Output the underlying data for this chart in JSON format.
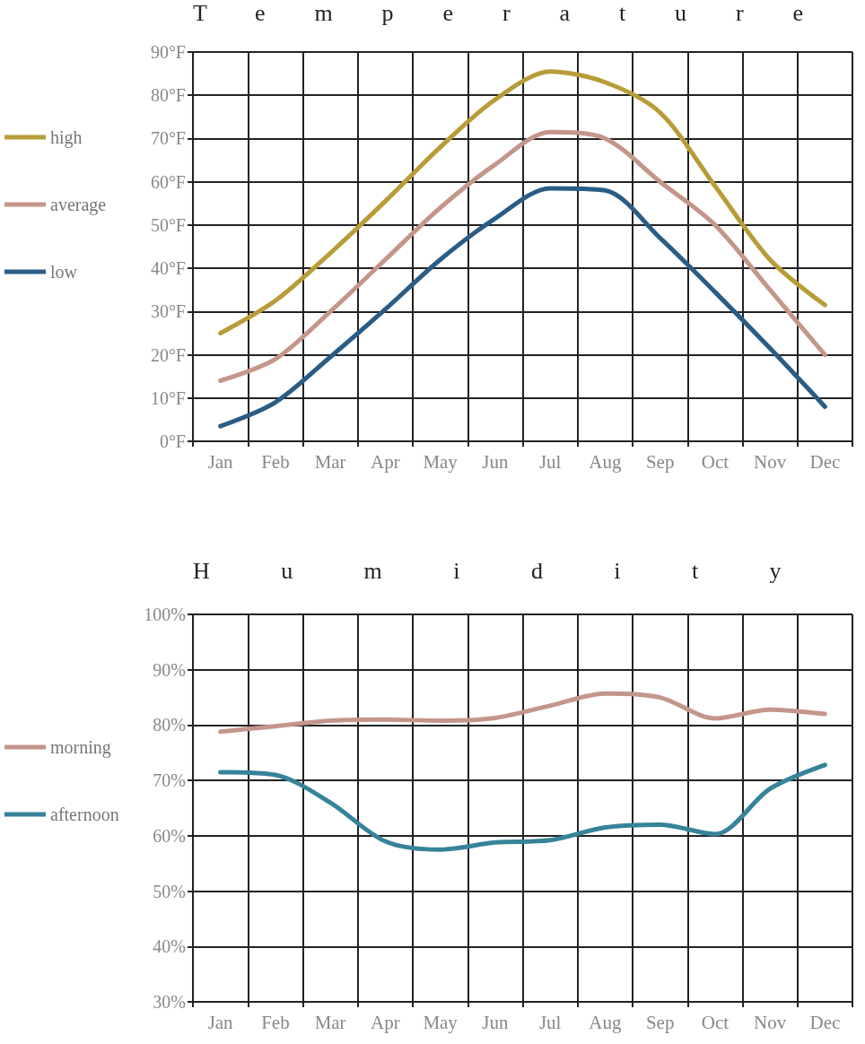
{
  "chart_data": [
    {
      "type": "line",
      "title": "Temperature",
      "categories": [
        "Jan",
        "Feb",
        "Mar",
        "Apr",
        "May",
        "Jun",
        "Jul",
        "Aug",
        "Sep",
        "Oct",
        "Nov",
        "Dec"
      ],
      "ylim": [
        0,
        90
      ],
      "yticks": [
        {
          "value": 0,
          "label": "0°F"
        },
        {
          "value": 10,
          "label": "10°F"
        },
        {
          "value": 20,
          "label": "20°F"
        },
        {
          "value": 30,
          "label": "30°F"
        },
        {
          "value": 40,
          "label": "40°F"
        },
        {
          "value": 50,
          "label": "50°F"
        },
        {
          "value": 60,
          "label": "60°F"
        },
        {
          "value": 70,
          "label": "70°F"
        },
        {
          "value": 80,
          "label": "80°F"
        },
        {
          "value": 90,
          "label": "90°F"
        }
      ],
      "grid": true,
      "legend": "left",
      "marker": "none",
      "line_style": "solid",
      "series": [
        {
          "name": "high",
          "color": "#b89c38",
          "values": [
            25,
            32.5,
            43.5,
            55.5,
            68,
            79,
            85.5,
            83,
            76,
            59,
            42,
            31.5
          ]
        },
        {
          "name": "average",
          "color": "#c4968a",
          "values": [
            14,
            19,
            30,
            42,
            54,
            64,
            71.5,
            70,
            60,
            50,
            35,
            20
          ]
        },
        {
          "name": "low",
          "color": "#2a5d85",
          "values": [
            3.5,
            9,
            19.5,
            30.5,
            42,
            51.5,
            58.5,
            58,
            47,
            34.5,
            21.5,
            8
          ]
        }
      ]
    },
    {
      "type": "line",
      "title": "Humidity",
      "categories": [
        "Jan",
        "Feb",
        "Mar",
        "Apr",
        "May",
        "Jun",
        "Jul",
        "Aug",
        "Sep",
        "Oct",
        "Nov",
        "Dec"
      ],
      "ylim": [
        30,
        100
      ],
      "yticks": [
        {
          "value": 30,
          "label": "30%"
        },
        {
          "value": 40,
          "label": "40%"
        },
        {
          "value": 50,
          "label": "50%"
        },
        {
          "value": 60,
          "label": "60%"
        },
        {
          "value": 70,
          "label": "70%"
        },
        {
          "value": 80,
          "label": "80%"
        },
        {
          "value": 90,
          "label": "90%"
        },
        {
          "value": 100,
          "label": "100%"
        }
      ],
      "grid": true,
      "legend": "left",
      "marker": "none",
      "line_style": "solid",
      "series": [
        {
          "name": "morning",
          "color": "#c4968a",
          "values": [
            78.8,
            79.8,
            80.8,
            81,
            80.8,
            81.3,
            83.5,
            85.7,
            85,
            81.2,
            82.8,
            82
          ]
        },
        {
          "name": "afternoon",
          "color": "#36839a",
          "values": [
            71.5,
            71,
            66,
            59,
            57.5,
            58.8,
            59.2,
            61.5,
            62,
            60.3,
            68.5,
            72.8
          ]
        }
      ]
    }
  ]
}
